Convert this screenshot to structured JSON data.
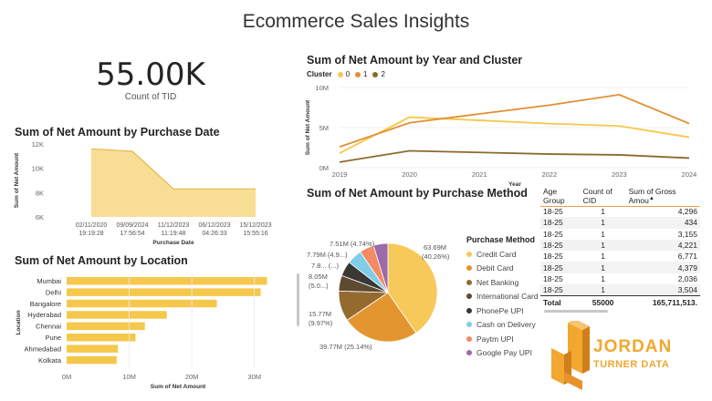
{
  "report": {
    "title": "Ecommerce Sales Insights"
  },
  "kpi": {
    "value": "55.00K",
    "label": "Count of TID"
  },
  "date_chart": {
    "title": "Sum of Net Amount by Purchase Date",
    "xlabel": "Purchase Date",
    "ylabel": "Sum of Net Amount",
    "y_ticks": [
      "12K",
      "10K",
      "8K",
      "6K"
    ],
    "x_ticks": [
      {
        "date": "02/11/2020",
        "time": "19:19:28"
      },
      {
        "date": "09/09/2024",
        "time": "17:56:54"
      },
      {
        "date": "11/12/2023",
        "time": "11:19:48"
      },
      {
        "date": "06/12/2023",
        "time": "04:26:33"
      },
      {
        "date": "15/12/2023",
        "time": "15:55:16"
      }
    ],
    "color": "#f7d98a"
  },
  "location_chart": {
    "title": "Sum of Net Amount by Location",
    "xlabel": "Sum of Net Amount",
    "ylabel": "Location",
    "x_ticks": [
      "0M",
      "10M",
      "20M",
      "30M"
    ],
    "color": "#f5c84c"
  },
  "year_chart": {
    "title": "Sum of Net Amount by Year and Cluster",
    "legend_title": "Cluster",
    "legend": [
      {
        "name": "0",
        "color": "#f5c84c"
      },
      {
        "name": "1",
        "color": "#e09032"
      },
      {
        "name": "2",
        "color": "#8c6a2c"
      }
    ],
    "xlabel": "Year",
    "ylabel": "Sum of Net Amount",
    "y_ticks": [
      "10M",
      "5M",
      "0M"
    ]
  },
  "method_chart": {
    "title": "Sum of Net Amount by Purchase Method",
    "legend_title": "Purchase Method",
    "labels": [
      {
        "value": "63.69M",
        "pct": "(40.26%)"
      },
      {
        "value": "39.77M (25.14%)"
      },
      {
        "value": "15.77M",
        "pct": "(9.97%)"
      },
      {
        "value": "8.05M",
        "pct": "(5.0...)"
      },
      {
        "value": "7.8... (...)"
      },
      {
        "value": "7.79M (4.9...)"
      },
      {
        "value": "7.51M (4.74%)"
      }
    ]
  },
  "table": {
    "headers": [
      "Age Group",
      "Count of CID",
      "Sum of Gross Amou"
    ],
    "rows": [
      [
        "18-25",
        "1",
        "4,296"
      ],
      [
        "18-25",
        "1",
        "434"
      ],
      [
        "18-25",
        "1",
        "3,155"
      ],
      [
        "18-25",
        "1",
        "4,221"
      ],
      [
        "18-25",
        "1",
        "6,771"
      ],
      [
        "18-25",
        "1",
        "4,379"
      ],
      [
        "18-25",
        "1",
        "2,036"
      ],
      [
        "18-25",
        "1",
        "3,504"
      ]
    ],
    "total": [
      "Total",
      "55000",
      "165,711,513."
    ]
  },
  "logo": {
    "line1": "JORDAN",
    "line2": "TURNER DATA"
  },
  "chart_data": [
    {
      "type": "area",
      "title": "Sum of Net Amount by Purchase Date",
      "xlabel": "Purchase Date",
      "ylabel": "Sum of Net Amount",
      "categories": [
        "02/11/2020 19:19:28",
        "09/09/2024 17:56:54",
        "11/12/2023 11:19:48",
        "06/12/2023 04:26:33",
        "15/12/2023 15:55:16"
      ],
      "values": [
        11600,
        11400,
        8300,
        8300,
        8300
      ],
      "ylim": [
        6000,
        12000
      ]
    },
    {
      "type": "bar",
      "orientation": "horizontal",
      "title": "Sum of Net Amount by Location",
      "xlabel": "Sum of Net Amount",
      "ylabel": "Location",
      "categories": [
        "Mumbai",
        "Delhi",
        "Bangalore",
        "Hyderabad",
        "Chennai",
        "Pune",
        "Ahmedabad",
        "Kolkata"
      ],
      "values": [
        32000000,
        31000000,
        24000000,
        16000000,
        12500000,
        11000000,
        8200000,
        8000000
      ],
      "xlim": [
        0,
        35000000
      ]
    },
    {
      "type": "line",
      "title": "Sum of Net Amount by Year and Cluster",
      "xlabel": "Year",
      "ylabel": "Sum of Net Amount",
      "x": [
        2019,
        2020,
        2021,
        2022,
        2023,
        2024
      ],
      "series": [
        {
          "name": "0",
          "values": [
            1800000,
            6300000,
            5900000,
            5500000,
            5200000,
            3800000
          ]
        },
        {
          "name": "1",
          "values": [
            2600000,
            5600000,
            6700000,
            7800000,
            9100000,
            5500000
          ]
        },
        {
          "name": "2",
          "values": [
            700000,
            2100000,
            1900000,
            1700000,
            1600000,
            1200000
          ]
        }
      ],
      "ylim": [
        0,
        10000000
      ]
    },
    {
      "type": "pie",
      "title": "Sum of Net Amount by Purchase Method",
      "categories": [
        "Credit Card",
        "Debit Card",
        "Net Banking",
        "International Card",
        "PhonePe UPI",
        "Cash on Delivery",
        "Paytm UPI",
        "Google Pay UPI"
      ],
      "values": [
        63690000,
        39770000,
        15770000,
        8050000,
        7800000,
        7790000,
        7510000,
        7510000
      ],
      "colors": [
        "#f7c85a",
        "#e3962f",
        "#946a2e",
        "#5d4a30",
        "#3a3834",
        "#7fcde8",
        "#f28a64",
        "#9b6ba8"
      ]
    }
  ]
}
